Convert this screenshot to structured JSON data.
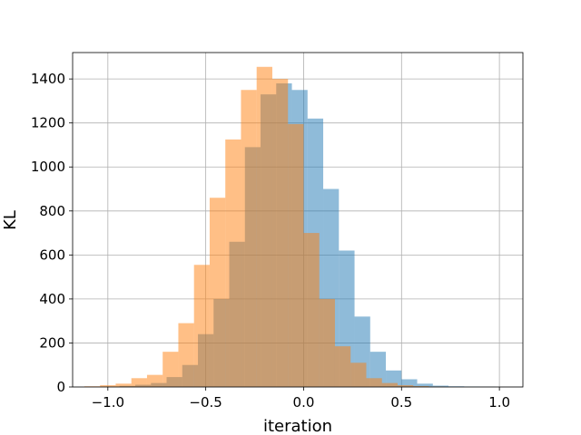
{
  "chart_data": {
    "type": "bar",
    "subtype": "overlapping-histogram",
    "title": "",
    "xlabel": "iteration",
    "ylabel": "KL",
    "xlim": [
      -1.18,
      1.12
    ],
    "ylim": [
      0,
      1520
    ],
    "xticks": [
      -1.0,
      -0.5,
      0.0,
      0.5,
      1.0
    ],
    "xtick_labels": [
      "−1.0",
      "−0.5",
      "0.0",
      "0.5",
      "1.0"
    ],
    "yticks": [
      0,
      200,
      400,
      600,
      800,
      1000,
      1200,
      1400
    ],
    "ytick_labels": [
      "0",
      "200",
      "400",
      "600",
      "800",
      "1000",
      "1200",
      "1400"
    ],
    "grid": true,
    "legend": "none",
    "series": [
      {
        "color": "#1f77b4",
        "opacity": 0.5,
        "bin_edges": [
          -1.02,
          -0.94,
          -0.86,
          -0.78,
          -0.7,
          -0.62,
          -0.54,
          -0.46,
          -0.38,
          -0.3,
          -0.22,
          -0.14,
          -0.06,
          0.02,
          0.1,
          0.18,
          0.26,
          0.34,
          0.42,
          0.5,
          0.58,
          0.66,
          0.74,
          0.82,
          0.9,
          0.98,
          1.02
        ],
        "counts": [
          2,
          5,
          10,
          18,
          45,
          100,
          240,
          400,
          660,
          1090,
          1330,
          1380,
          1350,
          1220,
          900,
          620,
          320,
          160,
          75,
          35,
          15,
          6,
          3,
          2,
          1,
          0
        ]
      },
      {
        "color": "#ff7f0e",
        "opacity": 0.5,
        "bin_edges": [
          -1.12,
          -1.04,
          -0.96,
          -0.88,
          -0.8,
          -0.72,
          -0.64,
          -0.56,
          -0.48,
          -0.4,
          -0.32,
          -0.24,
          -0.16,
          -0.08,
          0.0,
          0.08,
          0.16,
          0.24,
          0.32,
          0.4,
          0.48,
          0.56,
          0.64,
          0.72
        ],
        "counts": [
          3,
          8,
          15,
          40,
          55,
          160,
          290,
          555,
          860,
          1125,
          1350,
          1455,
          1400,
          1195,
          700,
          400,
          185,
          110,
          40,
          18,
          8,
          4,
          2
        ]
      }
    ]
  }
}
